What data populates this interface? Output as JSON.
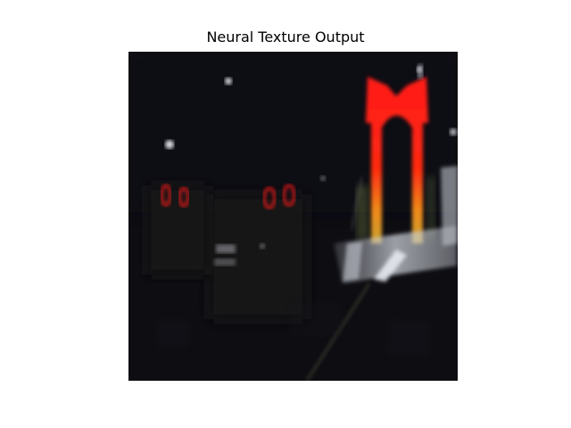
{
  "figure": {
    "title": "Neural Texture Output"
  },
  "image": {
    "background_color": "#0d0d12",
    "accent_red": "#ff1a1a",
    "accent_orange": "#f08a1a",
    "road_light": "#c8ccd4"
  }
}
